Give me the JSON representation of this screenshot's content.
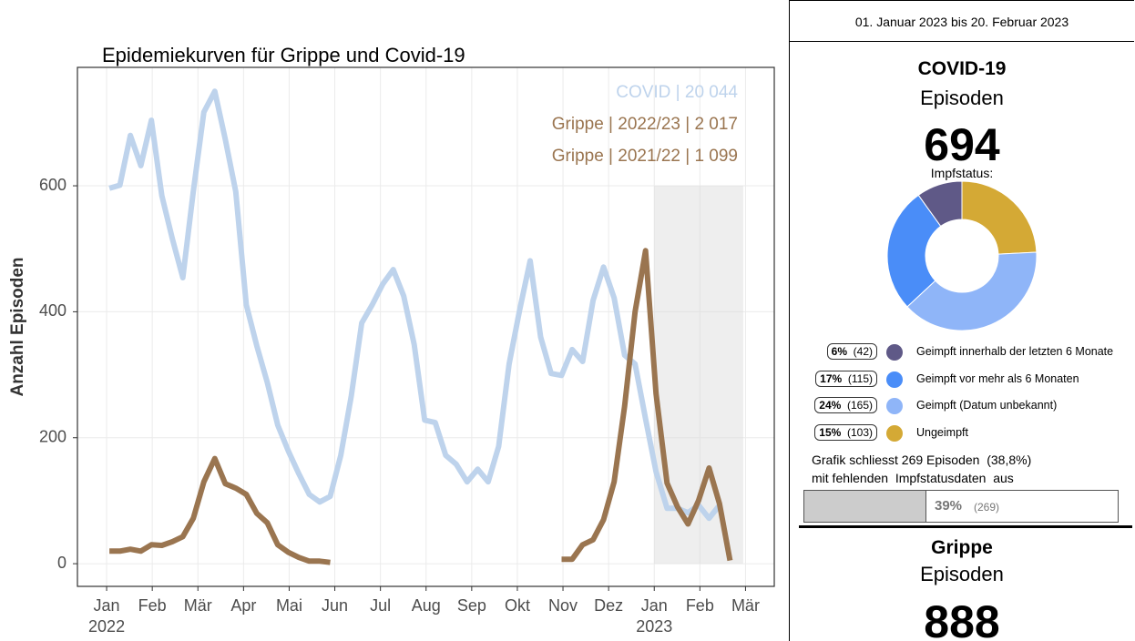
{
  "chart_data": [
    {
      "type": "line",
      "title": "Epidemiekurven für Grippe und Covid-19",
      "y_label": "Anzahl Episoden",
      "x": [
        0.06,
        0.29,
        0.52,
        0.75,
        0.98,
        1.21,
        1.44,
        1.67,
        1.9,
        2.13,
        2.37,
        2.6,
        2.83,
        3.06,
        3.29,
        3.52,
        3.75,
        3.98,
        4.21,
        4.44,
        4.67,
        4.9,
        5.13,
        5.36,
        5.59,
        5.82,
        6.05,
        6.28,
        6.51,
        6.74,
        6.97,
        7.2,
        7.43,
        7.66,
        7.9,
        8.13,
        8.36,
        8.59,
        8.82,
        9.05,
        9.28,
        9.51,
        9.74,
        9.97,
        10.2,
        10.43,
        10.66,
        10.89,
        11.12,
        11.35,
        11.58,
        11.81,
        12.04,
        12.28,
        12.51,
        12.74,
        12.97,
        13.2,
        13.43,
        13.66
      ],
      "series": [
        {
          "name": "COVID | 20 044",
          "color": "#bed3ec",
          "values": [
            596,
            601,
            680,
            632,
            704,
            584,
            516,
            454,
            591,
            717,
            750,
            674,
            591,
            411,
            346,
            288,
            220,
            179,
            143,
            110,
            98,
            107,
            172,
            266,
            382,
            411,
            444,
            467,
            425,
            348,
            228,
            224,
            172,
            158,
            130,
            150,
            130,
            186,
            317,
            403,
            481,
            360,
            302,
            299,
            340,
            321,
            418,
            471,
            422,
            331,
            317,
            230,
            146,
            88,
            88,
            81,
            93,
            72,
            93,
            null
          ]
        },
        {
          "name": "Grippe | 2022/23 | 2 017",
          "color": "#9a7550",
          "values": [
            null,
            null,
            null,
            null,
            null,
            null,
            null,
            null,
            null,
            null,
            null,
            null,
            null,
            null,
            null,
            null,
            null,
            null,
            null,
            null,
            null,
            null,
            null,
            null,
            null,
            null,
            null,
            null,
            null,
            null,
            null,
            null,
            null,
            null,
            null,
            null,
            null,
            null,
            null,
            null,
            null,
            null,
            null,
            7,
            7,
            30,
            38,
            70,
            130,
            250,
            400,
            497,
            270,
            128,
            90,
            63,
            100,
            152,
            95,
            5
          ]
        },
        {
          "name": "Grippe | 2021/22 | 1 099",
          "color": "#9a7550",
          "values": [
            20,
            20,
            23,
            20,
            30,
            29,
            35,
            43,
            72,
            130,
            167,
            127,
            120,
            110,
            80,
            65,
            30,
            18,
            10,
            4,
            4,
            2,
            null,
            null,
            null,
            null,
            null,
            null,
            null,
            null,
            null,
            null,
            null,
            null,
            null,
            null,
            null,
            null,
            null,
            null,
            null,
            null,
            null,
            null,
            null,
            null,
            null,
            null,
            null,
            null,
            null,
            null,
            null,
            null,
            null,
            null,
            null,
            null,
            null,
            null
          ]
        }
      ],
      "xlim": [
        -0.64,
        14.63
      ],
      "ylim": [
        -36,
        788
      ],
      "yticks": [
        0,
        200,
        400,
        600
      ],
      "xticks": [
        {
          "value": 0,
          "label": "Jan"
        },
        {
          "value": 1,
          "label": "Feb"
        },
        {
          "value": 2,
          "label": "Mär"
        },
        {
          "value": 3,
          "label": "Apr"
        },
        {
          "value": 4,
          "label": "Mai"
        },
        {
          "value": 5,
          "label": "Jun"
        },
        {
          "value": 6,
          "label": "Jul"
        },
        {
          "value": 7,
          "label": "Aug"
        },
        {
          "value": 8,
          "label": "Sep"
        },
        {
          "value": 9,
          "label": "Okt"
        },
        {
          "value": 10,
          "label": "Nov"
        },
        {
          "value": 11,
          "label": "Dez"
        },
        {
          "value": 12,
          "label": "Jan"
        },
        {
          "value": 13,
          "label": "Feb"
        },
        {
          "value": 14,
          "label": "Mär"
        }
      ],
      "x_year_labels": [
        {
          "value": 0,
          "label": "2022"
        },
        {
          "value": 12,
          "label": "2023"
        }
      ],
      "highlight_x": [
        12,
        13.95
      ],
      "highlight_y": [
        0,
        600
      ],
      "grid": true
    },
    {
      "type": "pie",
      "donut": true,
      "categories": [
        "Geimpft innerhalb der letzten 6 Monate",
        "Geimpft vor mehr als 6 Monaten",
        "Geimpft (Datum unbekannt)",
        "Ungeimpft"
      ],
      "values": [
        42,
        115,
        165,
        103
      ],
      "value_labels": [
        "(42)",
        "(115)",
        "(165)",
        "(103)"
      ],
      "shares": [
        "6%",
        "17%",
        "24%",
        "15%"
      ],
      "colors": [
        "#5f5987",
        "#4a8df8",
        "#8fb5f8",
        "#d4a935"
      ]
    }
  ],
  "panel": {
    "date_range": "01. Januar 2023 bis 20. Februar 2023",
    "covid": {
      "title": "COVID-19",
      "subtitle": "Episoden",
      "count": 694,
      "status_title": "Impfstatus:"
    },
    "note": [
      "Grafik schliesst 269 Episoden  (38,8%)",
      "mit fehlenden  Impfstatusdaten  aus"
    ],
    "missing": {
      "value": 39,
      "label": "39%",
      "count_label": "(269)"
    },
    "grippe": {
      "title": "Grippe",
      "subtitle": "Episoden",
      "count": 888
    }
  }
}
